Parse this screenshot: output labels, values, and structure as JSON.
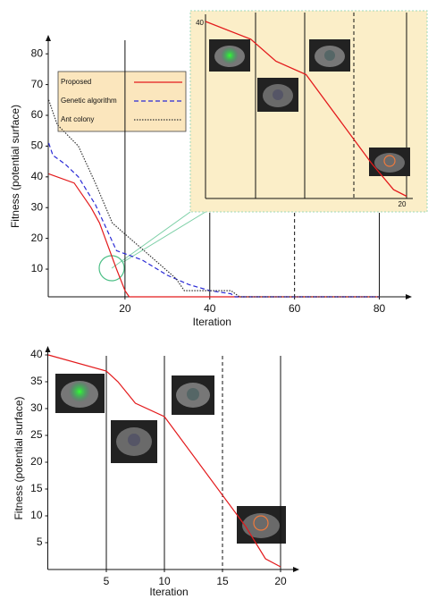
{
  "chart_data": [
    {
      "type": "line",
      "x_label": "Iteration",
      "y_label": "Fitness (potential surface)",
      "xlim": [
        2,
        86
      ],
      "ylim": [
        1,
        85
      ],
      "xticks": [
        20,
        40,
        60,
        80
      ],
      "yticks": [
        10,
        20,
        30,
        40,
        50,
        60,
        70,
        80
      ],
      "legend": "top-left",
      "series": [
        {
          "name": "Proposed",
          "color": "#e31a1c",
          "linestyle": "solid",
          "x": [
            2,
            8,
            11,
            12,
            14,
            18,
            20,
            21,
            80
          ],
          "values": [
            41,
            38,
            32,
            30,
            25,
            10,
            3,
            1,
            1
          ]
        },
        {
          "name": "Genetic algorithm",
          "color": "#2b2bd6",
          "linestyle": "dashed",
          "x": [
            2,
            3,
            6,
            9,
            13,
            15,
            18,
            24,
            30,
            35,
            40,
            45,
            46,
            80
          ],
          "values": [
            51,
            47,
            44,
            40,
            31,
            25,
            16,
            13,
            8,
            5,
            3,
            2,
            1,
            1
          ]
        },
        {
          "name": "Ant colony",
          "color": "#333333",
          "linestyle": "dotted",
          "x": [
            2,
            4,
            9,
            13,
            17,
            22,
            27,
            32,
            34,
            45,
            47,
            80
          ],
          "values": [
            65,
            57,
            50,
            38,
            25,
            19,
            13,
            7,
            3,
            3,
            1,
            1
          ]
        }
      ]
    },
    {
      "type": "line",
      "xlim": [
        0,
        20
      ],
      "ylim": [
        0,
        40
      ],
      "xticks": [
        20
      ],
      "yticks": [
        40
      ],
      "series": [
        {
          "color": "#e31a1c",
          "linestyle": "solid",
          "x": [
            0,
            4.5,
            7,
            10,
            16.5,
            18.7,
            20
          ],
          "values": [
            40,
            36,
            31,
            28,
            8,
            2,
            0.5
          ]
        }
      ]
    },
    {
      "type": "line",
      "x_label": "Iteration",
      "y_label": "Fitness (potential surface)",
      "xlim": [
        0,
        21
      ],
      "ylim": [
        0,
        41
      ],
      "xticks": [
        5,
        10,
        15,
        20
      ],
      "yticks": [
        5,
        10,
        15,
        20,
        25,
        30,
        35,
        40
      ],
      "series": [
        {
          "color": "#e31a1c",
          "linestyle": "solid",
          "x": [
            0,
            5,
            6,
            7.5,
            10,
            17,
            18.7,
            20
          ],
          "values": [
            40,
            37,
            35,
            31,
            28.5,
            8,
            2,
            0.5
          ]
        }
      ]
    }
  ]
}
